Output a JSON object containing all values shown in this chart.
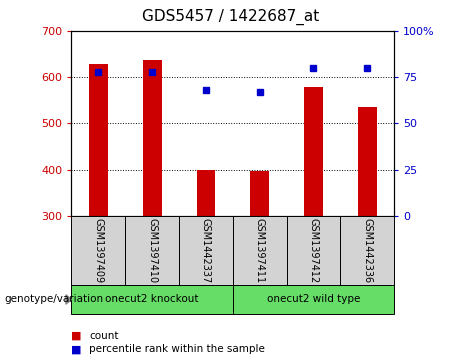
{
  "title": "GDS5457 / 1422687_at",
  "samples": [
    "GSM1397409",
    "GSM1397410",
    "GSM1442337",
    "GSM1397411",
    "GSM1397412",
    "GSM1442336"
  ],
  "counts": [
    628,
    637,
    400,
    397,
    578,
    535
  ],
  "percentiles": [
    78,
    78,
    68,
    67,
    80,
    80
  ],
  "group_labels": [
    "onecut2 knockout",
    "onecut2 wild type"
  ],
  "bar_color": "#CC0000",
  "dot_color": "#0000CC",
  "ylim_left": [
    300,
    700
  ],
  "ylim_right": [
    0,
    100
  ],
  "yticks_left": [
    300,
    400,
    500,
    600,
    700
  ],
  "yticks_right": [
    0,
    25,
    50,
    75,
    100
  ],
  "ytick_labels_right": [
    "0",
    "25",
    "50",
    "75",
    "100%"
  ],
  "bg_color": "#d3d3d3",
  "green_color": "#66dd66",
  "genotype_label": "genotype/variation",
  "legend_count_label": "count",
  "legend_percentile_label": "percentile rank within the sample",
  "title_fontsize": 11,
  "tick_fontsize": 8,
  "bar_width": 0.35
}
